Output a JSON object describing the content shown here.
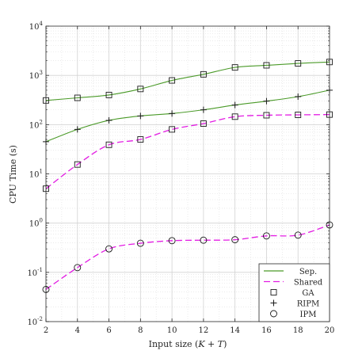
{
  "chart_data": {
    "type": "line",
    "xlabel": "Input size (K + T)",
    "ylabel": "CPU Time (s)",
    "xlim": [
      2,
      20
    ],
    "ylim_exp": [
      -2,
      4
    ],
    "yscale": "log",
    "grid": true,
    "minor_grid": true,
    "legend_position": "bottom-right",
    "x_ticks": [
      "2",
      "4",
      "6",
      "8",
      "10",
      "12",
      "14",
      "16",
      "18",
      "20"
    ],
    "y_tick_labels": [
      {
        "base": "10",
        "exp": "-2"
      },
      {
        "base": "10",
        "exp": "-1"
      },
      {
        "base": "10",
        "exp": "0"
      },
      {
        "base": "10",
        "exp": "1"
      },
      {
        "base": "10",
        "exp": "2"
      },
      {
        "base": "10",
        "exp": "3"
      },
      {
        "base": "10",
        "exp": "4"
      }
    ],
    "x": [
      2,
      4,
      6,
      8,
      10,
      12,
      14,
      16,
      18,
      20
    ],
    "series": [
      {
        "name": "Sep.",
        "style": "solid",
        "color": "#4a9a28",
        "marker": "square",
        "values": [
          310,
          350,
          400,
          530,
          790,
          1050,
          1450,
          1600,
          1750,
          1870
        ]
      },
      {
        "name": "Sep.",
        "style": "solid",
        "color": "#4a9a28",
        "marker": "plus",
        "values": [
          45,
          80,
          122,
          150,
          168,
          200,
          250,
          300,
          370,
          500
        ]
      },
      {
        "name": "Shared",
        "style": "dashed",
        "color": "#e31ce3",
        "marker": "square",
        "values": [
          5,
          15.5,
          39,
          50,
          80,
          105,
          145,
          155,
          158,
          160
        ]
      },
      {
        "name": "Shared",
        "style": "dashed",
        "color": "#e31ce3",
        "marker": "circle",
        "values": [
          0.045,
          0.125,
          0.3,
          0.39,
          0.44,
          0.45,
          0.46,
          0.55,
          0.57,
          0.92
        ]
      }
    ],
    "legend": [
      {
        "label": "Sep.",
        "kind": "line",
        "style": "solid",
        "color": "#4a9a28"
      },
      {
        "label": "Shared",
        "kind": "line",
        "style": "dashed",
        "color": "#e31ce3"
      },
      {
        "label": "GA",
        "kind": "marker",
        "marker": "square"
      },
      {
        "label": "RIPM",
        "kind": "marker",
        "marker": "plus"
      },
      {
        "label": "IPM",
        "kind": "marker",
        "marker": "circle"
      }
    ]
  }
}
